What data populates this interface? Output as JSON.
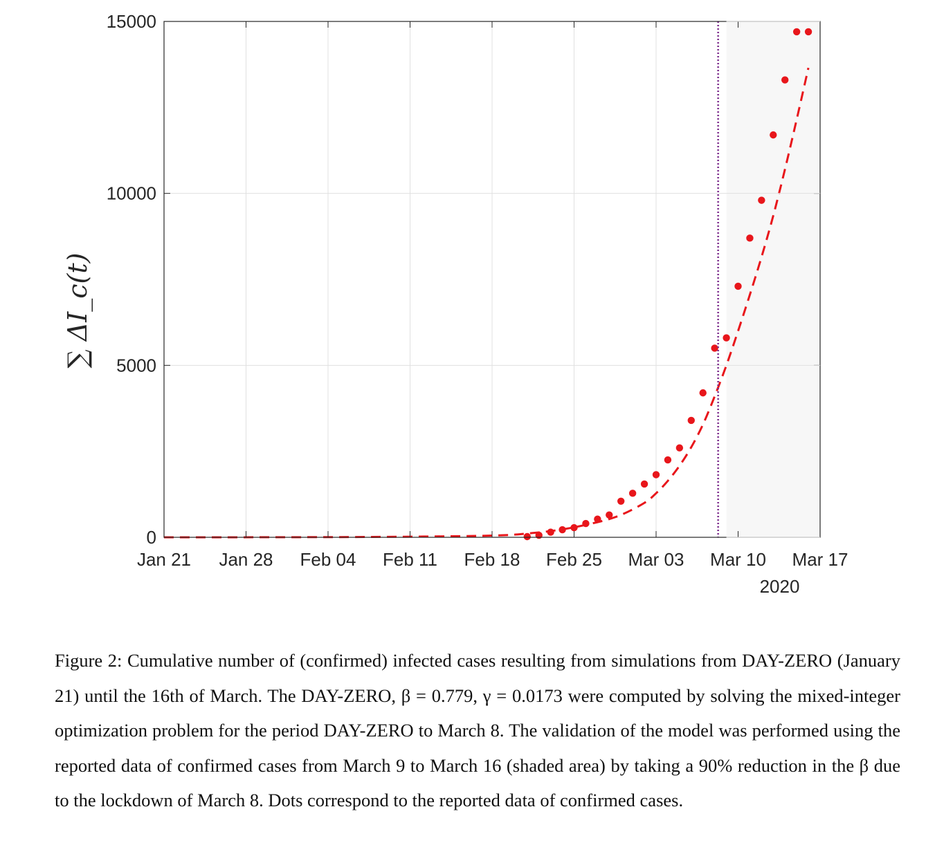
{
  "chart_data": {
    "type": "line",
    "title": "",
    "xlabel": "",
    "ylabel": "∑ ΔI_c(t)",
    "xlim": [
      "2020-01-21",
      "2020-03-17"
    ],
    "ylim": [
      0,
      15000
    ],
    "yticks": [
      0,
      5000,
      10000,
      15000
    ],
    "xticks": [
      "2020-01-21",
      "2020-01-28",
      "2020-02-04",
      "2020-02-11",
      "2020-02-18",
      "2020-02-25",
      "2020-03-03",
      "2020-03-10",
      "2020-03-17"
    ],
    "xtick_labels": [
      "Jan 21",
      "Jan 28",
      "Feb 04",
      "Feb 11",
      "Feb 18",
      "Feb 25",
      "Mar 03",
      "Mar 10",
      "Mar 17"
    ],
    "x_secondary_label": "2020",
    "grid": true,
    "colors": {
      "series": "#e8161b",
      "lockdown_line": "#7e2f8e",
      "shade": "#f7f7f7",
      "grid": "#e0e0e0"
    },
    "shaded_region": [
      "2020-03-09",
      "2020-03-17"
    ],
    "vertical_line": "2020-03-08",
    "series": [
      {
        "style": "dashed",
        "x": [
          "2020-01-21",
          "2020-02-01",
          "2020-02-10",
          "2020-02-18",
          "2020-02-21",
          "2020-02-24",
          "2020-02-27",
          "2020-02-29",
          "2020-03-02",
          "2020-03-03",
          "2020-03-04",
          "2020-03-05",
          "2020-03-06",
          "2020-03-07",
          "2020-03-08",
          "2020-03-09",
          "2020-03-10",
          "2020-03-11",
          "2020-03-12",
          "2020-03-13",
          "2020-03-14",
          "2020-03-15",
          "2020-03-16"
        ],
        "y": [
          0,
          3,
          15,
          50,
          110,
          230,
          440,
          650,
          1000,
          1280,
          1640,
          2080,
          2620,
          3280,
          4100,
          5000,
          6000,
          7050,
          8150,
          9350,
          10700,
          12150,
          13650
        ]
      },
      {
        "style": "dots",
        "x": [
          "2020-02-21",
          "2020-02-22",
          "2020-02-23",
          "2020-02-24",
          "2020-02-25",
          "2020-02-26",
          "2020-02-27",
          "2020-02-28",
          "2020-02-29",
          "2020-03-01",
          "2020-03-02",
          "2020-03-03",
          "2020-03-04",
          "2020-03-05",
          "2020-03-06",
          "2020-03-07",
          "2020-03-08",
          "2020-03-09",
          "2020-03-10",
          "2020-03-11",
          "2020-03-12",
          "2020-03-13",
          "2020-03-14",
          "2020-03-15",
          "2020-03-16"
        ],
        "y": [
          20,
          60,
          150,
          220,
          280,
          400,
          530,
          650,
          1050,
          1280,
          1550,
          1820,
          2250,
          2600,
          3400,
          4200,
          5500,
          5800,
          7300,
          8700,
          9800,
          11700,
          13300,
          14700,
          14700
        ]
      }
    ]
  },
  "caption": {
    "text": "Figure 2: Cumulative number of (confirmed) infected cases resulting from simulations from DAY-ZERO (January 21) until the 16th of March. The DAY-ZERO, β = 0.779, γ = 0.0173 were computed by solving the mixed-integer optimization problem for the period DAY-ZERO to March 8. The validation of the model was performed using the reported data of confirmed cases from March 9 to March 16 (shaded area) by taking a 90% reduction in the β due to the lockdown of March 8. Dots correspond to the reported data of confirmed cases."
  }
}
